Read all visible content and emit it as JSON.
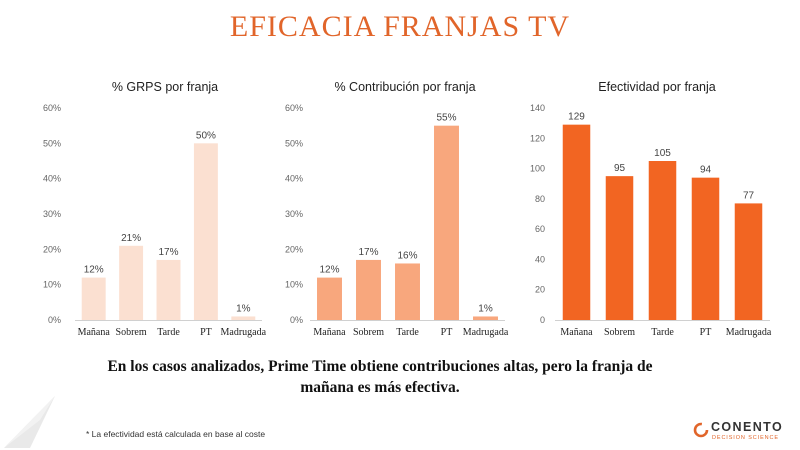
{
  "title": "EFICACIA FRANJAS TV",
  "conclusion": {
    "line1": "En los casos analizados, Prime Time obtiene contribuciones altas, pero la franja de",
    "line2": "mañana es más efectiva."
  },
  "footnote": "* La efectividad está calculada en base al coste",
  "logo": {
    "brand": "CONENTO",
    "tagline": "DECISION SCIENCE",
    "color": "#e1652a"
  },
  "chart_data": [
    {
      "type": "bar",
      "title": "% GRPS por franja",
      "categories": [
        "Mañana",
        "Sobrem",
        "Tarde",
        "PT",
        "Madrugada"
      ],
      "values": [
        12,
        21,
        17,
        50,
        1
      ],
      "data_labels": [
        "12%",
        "21%",
        "17%",
        "50%",
        "1%"
      ],
      "yticks": [
        "0%",
        "10%",
        "20%",
        "30%",
        "40%",
        "50%",
        "60%"
      ],
      "ylim": [
        0,
        60
      ],
      "grid": false,
      "bar_color": "#fbe0d1"
    },
    {
      "type": "bar",
      "title": "% Contribución por franja",
      "categories": [
        "Mañana",
        "Sobrem",
        "Tarde",
        "PT",
        "Madrugada"
      ],
      "values": [
        12,
        17,
        16,
        55,
        1
      ],
      "data_labels": [
        "12%",
        "17%",
        "16%",
        "55%",
        "1%"
      ],
      "yticks": [
        "0%",
        "10%",
        "20%",
        "30%",
        "40%",
        "50%",
        "60%"
      ],
      "ylim": [
        0,
        60
      ],
      "grid": false,
      "bar_color": "#f8a77d"
    },
    {
      "type": "bar",
      "title": "Efectividad por franja",
      "categories": [
        "Mañana",
        "Sobrem",
        "Tarde",
        "PT",
        "Madrugada"
      ],
      "values": [
        129,
        95,
        105,
        94,
        77
      ],
      "data_labels": [
        "129",
        "95",
        "105",
        "94",
        "77"
      ],
      "yticks": [
        "0",
        "20",
        "40",
        "60",
        "80",
        "100",
        "120",
        "140"
      ],
      "ylim": [
        0,
        140
      ],
      "grid": false,
      "bar_color": "#f26522"
    }
  ]
}
